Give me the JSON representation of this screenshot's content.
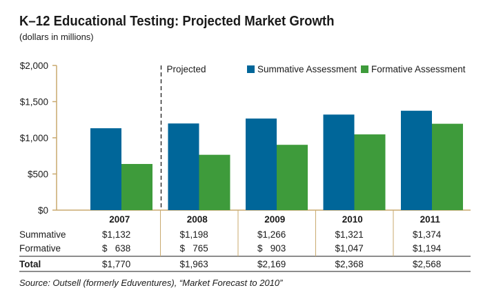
{
  "title": "K–12 Educational Testing: Projected Market Growth",
  "subtitle": "(dollars in millions)",
  "projected_label": "Projected",
  "source": "Source: Outsell (formerly Eduventures), “Market Forecast to 2010”",
  "colors": {
    "summative": "#006699",
    "formative": "#3e9b3b",
    "axis": "#c9a96e"
  },
  "chart_data": {
    "type": "bar",
    "categories": [
      "2007",
      "2008",
      "2009",
      "2010",
      "2011"
    ],
    "series": [
      {
        "name": "Summative Assessment",
        "values": [
          1132,
          1198,
          1266,
          1321,
          1374
        ]
      },
      {
        "name": "Formative Assessment",
        "values": [
          638,
          765,
          903,
          1047,
          1194
        ]
      }
    ],
    "ylim": [
      0,
      2000
    ],
    "yticks": [
      0,
      500,
      1000,
      1500,
      2000
    ],
    "ytick_labels": [
      "$0",
      "$500",
      "$1,000",
      "$1,500",
      "$2,000"
    ],
    "legend_position": "top-right"
  },
  "table": {
    "rows": [
      {
        "label": "Summative",
        "values": [
          "$1,132",
          "$1,198",
          "$1,266",
          "$1,321",
          "$1,374"
        ]
      },
      {
        "label": "Formative",
        "values": [
          "$   638",
          "$   765",
          "$   903",
          "$1,047",
          "$1,194"
        ]
      }
    ],
    "total": {
      "label": "Total",
      "values": [
        "$1,770",
        "$1,963",
        "$2,169",
        "$2,368",
        "$2,568"
      ]
    }
  }
}
